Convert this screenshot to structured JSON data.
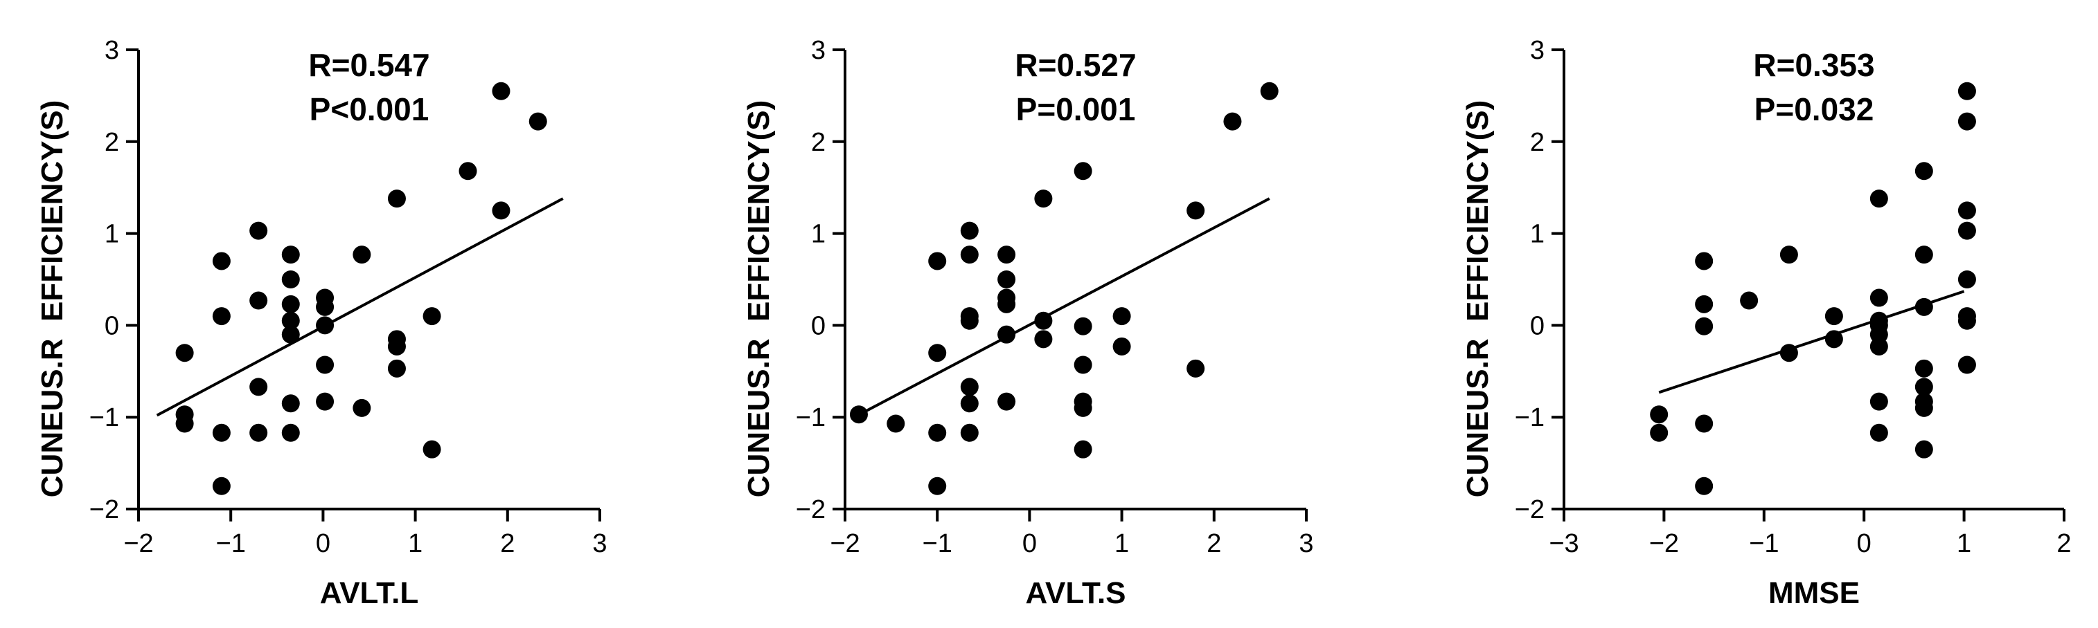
{
  "chart_data": [
    {
      "type": "scatter",
      "xlabel": "AVLT.L",
      "ylabel": "CUNEUS.R  EFFICIENCY(S)",
      "xlim": [
        -2,
        3
      ],
      "ylim": [
        -2,
        3
      ],
      "xticks": [
        -2,
        -1,
        0,
        1,
        2,
        3
      ],
      "yticks": [
        -2,
        -1,
        0,
        1,
        2,
        3
      ],
      "annotations": [
        "R=0.547",
        "P<0.001"
      ],
      "fit_line": {
        "x": [
          -1.8,
          2.6
        ],
        "y": [
          -0.98,
          1.38
        ]
      },
      "points": [
        [
          -1.5,
          -0.3
        ],
        [
          -1.5,
          -0.97
        ],
        [
          -1.5,
          -1.07
        ],
        [
          -1.1,
          0.7
        ],
        [
          -1.1,
          0.1
        ],
        [
          -1.1,
          -1.17
        ],
        [
          -1.1,
          -1.75
        ],
        [
          -0.7,
          1.03
        ],
        [
          -0.7,
          0.27
        ],
        [
          -0.7,
          -0.67
        ],
        [
          -0.7,
          -1.17
        ],
        [
          -0.35,
          0.77
        ],
        [
          -0.35,
          0.5
        ],
        [
          -0.35,
          0.23
        ],
        [
          -0.35,
          0.05
        ],
        [
          -0.35,
          -0.1
        ],
        [
          -0.35,
          -0.85
        ],
        [
          -0.35,
          -1.17
        ],
        [
          0.02,
          0.3
        ],
        [
          0.02,
          0.2
        ],
        [
          0.02,
          0.0
        ],
        [
          0.02,
          -0.43
        ],
        [
          0.02,
          -0.83
        ],
        [
          0.42,
          0.77
        ],
        [
          0.42,
          -0.9
        ],
        [
          0.8,
          1.38
        ],
        [
          0.8,
          -0.15
        ],
        [
          0.8,
          -0.23
        ],
        [
          0.8,
          -0.47
        ],
        [
          1.18,
          0.1
        ],
        [
          1.18,
          -1.35
        ],
        [
          1.57,
          1.68
        ],
        [
          1.93,
          1.25
        ],
        [
          1.93,
          2.55
        ],
        [
          2.33,
          2.22
        ]
      ]
    },
    {
      "type": "scatter",
      "xlabel": "AVLT.S",
      "ylabel": "CUNEUS.R  EFFICIENCY(S)",
      "xlim": [
        -2,
        3
      ],
      "ylim": [
        -2,
        3
      ],
      "xticks": [
        -2,
        -1,
        0,
        1,
        2,
        3
      ],
      "yticks": [
        -2,
        -1,
        0,
        1,
        2,
        3
      ],
      "annotations": [
        "R=0.527",
        "P=0.001"
      ],
      "fit_line": {
        "x": [
          -1.9,
          2.6
        ],
        "y": [
          -1.0,
          1.38
        ]
      },
      "points": [
        [
          -1.85,
          -0.97
        ],
        [
          -1.45,
          -1.07
        ],
        [
          -1.0,
          0.7
        ],
        [
          -1.0,
          -0.3
        ],
        [
          -1.0,
          -1.17
        ],
        [
          -1.0,
          -1.75
        ],
        [
          -0.65,
          1.03
        ],
        [
          -0.65,
          0.77
        ],
        [
          -0.65,
          0.1
        ],
        [
          -0.65,
          0.05
        ],
        [
          -0.65,
          -0.67
        ],
        [
          -0.65,
          -0.85
        ],
        [
          -0.65,
          -1.17
        ],
        [
          -0.25,
          0.77
        ],
        [
          -0.25,
          0.5
        ],
        [
          -0.25,
          0.3
        ],
        [
          -0.25,
          0.23
        ],
        [
          -0.25,
          -0.1
        ],
        [
          -0.25,
          -0.83
        ],
        [
          0.15,
          1.38
        ],
        [
          0.15,
          0.05
        ],
        [
          0.15,
          -0.15
        ],
        [
          0.58,
          1.68
        ],
        [
          0.58,
          -0.01
        ],
        [
          0.58,
          -0.43
        ],
        [
          0.58,
          -0.83
        ],
        [
          0.58,
          -0.9
        ],
        [
          0.58,
          -1.35
        ],
        [
          1.0,
          0.1
        ],
        [
          1.0,
          -0.23
        ],
        [
          1.8,
          1.25
        ],
        [
          1.8,
          -0.47
        ],
        [
          2.2,
          2.22
        ],
        [
          2.6,
          2.55
        ]
      ]
    },
    {
      "type": "scatter",
      "xlabel": "MMSE",
      "ylabel": "CUNEUS.R  EFFICIENCY(S)",
      "xlim": [
        -3,
        2
      ],
      "ylim": [
        -2,
        3
      ],
      "xticks": [
        -3,
        -2,
        -1,
        0,
        1,
        2
      ],
      "yticks": [
        -2,
        -1,
        0,
        1,
        2,
        3
      ],
      "annotations": [
        "R=0.353",
        "P=0.032"
      ],
      "fit_line": {
        "x": [
          -2.05,
          1.0
        ],
        "y": [
          -0.73,
          0.37
        ]
      },
      "points": [
        [
          -2.05,
          -0.97
        ],
        [
          -2.05,
          -1.17
        ],
        [
          -1.6,
          0.7
        ],
        [
          -1.6,
          0.23
        ],
        [
          -1.6,
          -0.01
        ],
        [
          -1.6,
          -1.07
        ],
        [
          -1.6,
          -1.75
        ],
        [
          -1.15,
          0.27
        ],
        [
          -0.75,
          0.77
        ],
        [
          -0.75,
          -0.3
        ],
        [
          -0.3,
          0.1
        ],
        [
          -0.3,
          -0.15
        ],
        [
          0.15,
          1.38
        ],
        [
          0.15,
          0.3
        ],
        [
          0.15,
          0.05
        ],
        [
          0.15,
          0.0
        ],
        [
          0.15,
          -0.1
        ],
        [
          0.15,
          -0.23
        ],
        [
          0.15,
          -0.83
        ],
        [
          0.15,
          -1.17
        ],
        [
          0.6,
          1.68
        ],
        [
          0.6,
          0.77
        ],
        [
          0.6,
          0.2
        ],
        [
          0.6,
          -0.47
        ],
        [
          0.6,
          -0.67
        ],
        [
          0.6,
          -0.83
        ],
        [
          0.6,
          -0.9
        ],
        [
          0.6,
          -1.35
        ],
        [
          1.03,
          2.55
        ],
        [
          1.03,
          2.22
        ],
        [
          1.03,
          1.25
        ],
        [
          1.03,
          1.03
        ],
        [
          1.03,
          0.5
        ],
        [
          1.03,
          0.1
        ],
        [
          1.03,
          0.05
        ],
        [
          1.03,
          -0.43
        ]
      ]
    }
  ]
}
